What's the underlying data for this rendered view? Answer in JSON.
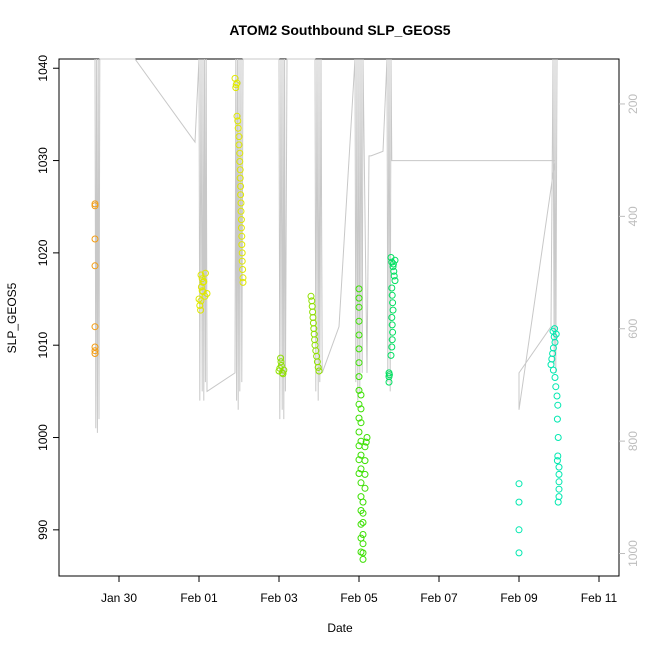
{
  "chart_data": {
    "type": "scatter",
    "title": "ATOM2 Southbound SLP_GEOS5",
    "xlabel": "Date",
    "ylabel": "SLP_GEOS5",
    "ylim": [
      985,
      1041
    ],
    "y_ticks": [
      990,
      1000,
      1010,
      1020,
      1030,
      1040
    ],
    "x_ticks": [
      {
        "label": "Jan 30",
        "day": 30
      },
      {
        "label": "Feb 01",
        "day": 32
      },
      {
        "label": "Feb 03",
        "day": 34
      },
      {
        "label": "Feb 05",
        "day": 36
      },
      {
        "label": "Feb 07",
        "day": 38
      },
      {
        "label": "Feb 09",
        "day": 40
      },
      {
        "label": "Feb 11",
        "day": 42
      }
    ],
    "x_range_days": [
      28.5,
      42.5
    ],
    "secondary_axis": {
      "side": "right",
      "color": "#bdbdbd",
      "ticks": [
        200,
        400,
        600,
        800,
        1000
      ],
      "range": [
        120,
        1040
      ]
    },
    "background_trace": {
      "color": "#c8c8c8",
      "points": [
        [
          29.4,
          1041
        ],
        [
          29.42,
          1001
        ],
        [
          29.44,
          1041
        ],
        [
          29.46,
          1000.5
        ],
        [
          29.48,
          1041
        ],
        [
          29.5,
          1002
        ],
        [
          29.52,
          1041
        ],
        [
          30.4,
          1041
        ],
        [
          31.9,
          1032
        ],
        [
          32.0,
          1041
        ],
        [
          32.02,
          1004
        ],
        [
          32.05,
          1041
        ],
        [
          32.08,
          1005
        ],
        [
          32.1,
          1041
        ],
        [
          32.12,
          1004
        ],
        [
          32.14,
          1041
        ],
        [
          32.16,
          1006
        ],
        [
          32.18,
          1041
        ],
        [
          32.2,
          1005
        ],
        [
          32.9,
          1007
        ],
        [
          32.92,
          1041
        ],
        [
          32.94,
          1004
        ],
        [
          32.96,
          1041
        ],
        [
          32.98,
          1003
        ],
        [
          33.0,
          1041
        ],
        [
          33.02,
          1005
        ],
        [
          33.05,
          1041
        ],
        [
          33.07,
          1006
        ],
        [
          33.1,
          1041
        ],
        [
          33.8,
          1041
        ],
        [
          34.0,
          1041
        ],
        [
          34.02,
          1002
        ],
        [
          34.05,
          1041
        ],
        [
          34.08,
          1003
        ],
        [
          34.1,
          1041
        ],
        [
          34.12,
          1002
        ],
        [
          34.14,
          1041
        ],
        [
          34.16,
          1005
        ],
        [
          34.2,
          1041
        ],
        [
          34.9,
          1041
        ],
        [
          34.92,
          1005
        ],
        [
          34.95,
          1041
        ],
        [
          34.98,
          1004
        ],
        [
          35.0,
          1041
        ],
        [
          35.02,
          1006
        ],
        [
          35.05,
          1041
        ],
        [
          35.08,
          1007
        ],
        [
          35.5,
          1012
        ],
        [
          35.9,
          1041
        ],
        [
          35.92,
          1006
        ],
        [
          35.95,
          1041
        ],
        [
          35.97,
          1004
        ],
        [
          36.0,
          1041
        ],
        [
          36.02,
          1005
        ],
        [
          36.05,
          1041
        ],
        [
          36.08,
          1007
        ],
        [
          36.1,
          1041
        ],
        [
          36.2,
          1007
        ],
        [
          36.25,
          1030.5
        ],
        [
          36.3,
          1030.5
        ],
        [
          36.6,
          1031
        ],
        [
          36.7,
          1041
        ],
        [
          36.72,
          1006
        ],
        [
          36.75,
          1041
        ],
        [
          36.78,
          1005
        ],
        [
          36.8,
          1041
        ],
        [
          36.82,
          1030
        ],
        [
          40.0,
          1030
        ],
        [
          40.9,
          1030
        ],
        [
          40.0,
          1003
        ],
        [
          40.0,
          1007
        ],
        [
          40.8,
          1012
        ],
        [
          40.85,
          1041
        ],
        [
          40.88,
          1008
        ],
        [
          40.9,
          1041
        ],
        [
          40.92,
          1007
        ],
        [
          40.95,
          1041
        ]
      ]
    },
    "series": [
      {
        "color": "#f39c12",
        "points": [
          [
            29.4,
            1025.3
          ],
          [
            29.4,
            1025.1
          ],
          [
            29.4,
            1021.5
          ],
          [
            29.4,
            1018.6
          ],
          [
            29.4,
            1012
          ],
          [
            29.4,
            1009.8
          ],
          [
            29.4,
            1009.4
          ],
          [
            29.4,
            1009.1
          ]
        ]
      },
      {
        "color": "#dfe800",
        "points": [
          [
            32.05,
            1017.6
          ],
          [
            32.08,
            1017.2
          ],
          [
            32.1,
            1016.8
          ],
          [
            32.06,
            1016.3
          ],
          [
            32.1,
            1015.8
          ],
          [
            32.15,
            1015.3
          ],
          [
            32.05,
            1014.8
          ],
          [
            32.02,
            1014.3
          ],
          [
            32.04,
            1013.8
          ],
          [
            32.08,
            1015.9
          ],
          [
            32.0,
            1015.0
          ],
          [
            32.12,
            1016.9
          ],
          [
            32.16,
            1017.8
          ],
          [
            32.2,
            1015.6
          ],
          [
            32.9,
            1038.9
          ],
          [
            32.95,
            1038.4
          ],
          [
            32.92,
            1037.9
          ],
          [
            32.95,
            1034.8
          ],
          [
            32.97,
            1034.3
          ],
          [
            32.98,
            1033.5
          ],
          [
            33.0,
            1032.6
          ],
          [
            33.0,
            1031.7
          ],
          [
            33.02,
            1030.8
          ],
          [
            33.02,
            1029.9
          ],
          [
            33.03,
            1029.0
          ],
          [
            33.03,
            1028.1
          ],
          [
            33.04,
            1027.2
          ],
          [
            33.04,
            1026.3
          ],
          [
            33.05,
            1025.4
          ],
          [
            33.05,
            1024.5
          ],
          [
            33.06,
            1023.6
          ],
          [
            33.06,
            1022.7
          ],
          [
            33.07,
            1021.8
          ],
          [
            33.07,
            1020.9
          ],
          [
            33.08,
            1020.0
          ],
          [
            33.08,
            1019.1
          ],
          [
            33.09,
            1018.2
          ],
          [
            33.1,
            1017.3
          ],
          [
            33.1,
            1016.8
          ],
          [
            32.93,
            1038.2
          ]
        ]
      },
      {
        "color": "#8fe000",
        "points": [
          [
            34.0,
            1007.2
          ],
          [
            34.02,
            1007.5
          ],
          [
            34.05,
            1008.2
          ],
          [
            34.08,
            1007.0
          ],
          [
            34.1,
            1006.9
          ],
          [
            34.06,
            1007.8
          ],
          [
            34.04,
            1008.6
          ],
          [
            34.12,
            1007.3
          ],
          [
            34.8,
            1015.3
          ],
          [
            34.82,
            1014.8
          ],
          [
            34.83,
            1014.2
          ],
          [
            34.84,
            1013.6
          ],
          [
            34.85,
            1013.0
          ],
          [
            34.86,
            1012.4
          ],
          [
            34.87,
            1011.8
          ],
          [
            34.88,
            1011.2
          ],
          [
            34.89,
            1010.6
          ],
          [
            34.9,
            1010.0
          ],
          [
            34.92,
            1009.4
          ],
          [
            34.94,
            1008.8
          ],
          [
            34.96,
            1008.2
          ],
          [
            34.98,
            1007.6
          ],
          [
            35.0,
            1007.2
          ]
        ]
      },
      {
        "color": "#3be000",
        "points": [
          [
            36.0,
            1016.1
          ],
          [
            36.0,
            1015.1
          ],
          [
            36.0,
            1014.1
          ],
          [
            36.0,
            1012.6
          ],
          [
            36.0,
            1011.1
          ],
          [
            36.0,
            1009.6
          ],
          [
            36.0,
            1008.1
          ],
          [
            36.0,
            1006.6
          ],
          [
            36.0,
            1005.1
          ],
          [
            36.0,
            1003.6
          ],
          [
            36.0,
            1002.1
          ],
          [
            36.0,
            1000.6
          ],
          [
            36.0,
            999.1
          ],
          [
            36.0,
            997.6
          ],
          [
            36.0,
            996.1
          ],
          [
            36.05,
            1004.6
          ],
          [
            36.05,
            1003.1
          ],
          [
            36.05,
            1001.6
          ],
          [
            36.05,
            999.6
          ],
          [
            36.05,
            998.1
          ],
          [
            36.05,
            996.6
          ],
          [
            36.05,
            995.1
          ],
          [
            36.05,
            993.6
          ],
          [
            36.05,
            992.1
          ],
          [
            36.05,
            990.6
          ],
          [
            36.05,
            989.1
          ],
          [
            36.05,
            987.6
          ],
          [
            36.1,
            986.8
          ],
          [
            36.1,
            987.5
          ],
          [
            36.1,
            988.5
          ],
          [
            36.1,
            989.5
          ],
          [
            36.1,
            990.8
          ],
          [
            36.1,
            991.8
          ],
          [
            36.1,
            993.0
          ],
          [
            36.15,
            994.5
          ],
          [
            36.15,
            996.0
          ],
          [
            36.15,
            997.5
          ],
          [
            36.15,
            999.0
          ],
          [
            36.18,
            999.5
          ],
          [
            36.2,
            1000.0
          ]
        ]
      },
      {
        "color": "#00e060",
        "points": [
          [
            36.8,
            1019.5
          ],
          [
            36.82,
            1019.0
          ],
          [
            36.85,
            1018.5
          ],
          [
            36.87,
            1018.0
          ],
          [
            36.88,
            1017.5
          ],
          [
            36.9,
            1017.0
          ],
          [
            36.82,
            1016.2
          ],
          [
            36.83,
            1015.4
          ],
          [
            36.84,
            1014.6
          ],
          [
            36.85,
            1013.8
          ],
          [
            36.82,
            1013.0
          ],
          [
            36.83,
            1012.2
          ],
          [
            36.84,
            1011.4
          ],
          [
            36.83,
            1010.6
          ],
          [
            36.82,
            1009.8
          ],
          [
            36.8,
            1008.9
          ],
          [
            36.75,
            1007.0
          ],
          [
            36.75,
            1006.6
          ],
          [
            36.75,
            1006.0
          ],
          [
            36.76,
            1006.8
          ],
          [
            36.9,
            1019.2
          ],
          [
            36.86,
            1018.8
          ]
        ]
      },
      {
        "color": "#00e8b0",
        "points": [
          [
            40.0,
            995.0
          ],
          [
            40.0,
            993.0
          ],
          [
            40.0,
            990.0
          ],
          [
            40.0,
            987.5
          ],
          [
            40.85,
            1011.5
          ],
          [
            40.88,
            1010.9
          ],
          [
            40.9,
            1010.3
          ],
          [
            40.86,
            1009.7
          ],
          [
            40.84,
            1009.1
          ],
          [
            40.82,
            1008.5
          ],
          [
            40.8,
            1007.9
          ],
          [
            40.86,
            1007.3
          ],
          [
            40.9,
            1006.5
          ],
          [
            40.92,
            1005.5
          ],
          [
            40.95,
            1004.5
          ],
          [
            40.97,
            1003.5
          ],
          [
            40.96,
            1002.0
          ],
          [
            40.98,
            1000.0
          ],
          [
            40.97,
            998.0
          ],
          [
            41.0,
            996.8
          ],
          [
            41.0,
            996.0
          ],
          [
            41.0,
            995.2
          ],
          [
            41.0,
            994.4
          ],
          [
            41.0,
            993.6
          ],
          [
            40.98,
            993.0
          ],
          [
            40.96,
            997.5
          ],
          [
            40.93,
            1011.2
          ],
          [
            40.89,
            1011.8
          ]
        ]
      }
    ]
  }
}
